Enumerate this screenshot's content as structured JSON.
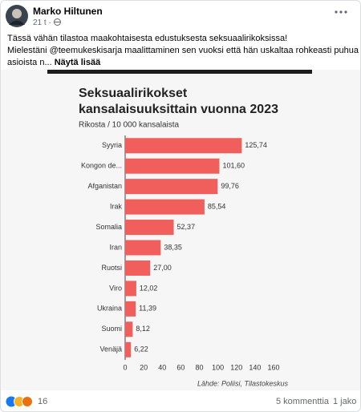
{
  "post": {
    "author": "Marko Hiltunen",
    "time": "21 t",
    "body_lines": [
      "Tässä vähän tilastoa maakohtaisesta edustuksesta seksuaalirikoksissa!",
      "Mielestäni @teemukeskisarja maalittaminen sen vuoksi että hän uskaltaa rohkeasti puhua",
      "asioista n..."
    ],
    "see_more": "Näytä lisää",
    "reaction_count": "16",
    "comments": "5 kommenttia",
    "shares": "1 jako"
  },
  "chart_data": {
    "type": "bar",
    "orientation": "horizontal",
    "title": [
      "Seksuaalirikokset",
      "kansalaisuuksittain vuonna 2023"
    ],
    "subtitle": "Rikosta / 10 000 kansalaista",
    "source": "Lähde: Poliisi, Tilastokeskus",
    "categories": [
      "Syyria",
      "Kongon de...",
      "Afganistan",
      "Irak",
      "Somalia",
      "Iran",
      "Ruotsi",
      "Viro",
      "Ukraina",
      "Suomi",
      "Venäjä"
    ],
    "values": [
      125.74,
      101.6,
      99.76,
      85.54,
      52.37,
      38.35,
      27.0,
      12.02,
      11.39,
      8.12,
      6.22
    ],
    "value_labels": [
      "125,74",
      "101,60",
      "99,76",
      "85,54",
      "52,37",
      "38,35",
      "27,00",
      "12,02",
      "11,39",
      "8,12",
      "6,22"
    ],
    "color": "#f15f5c",
    "xlim": [
      0,
      160
    ],
    "xticks": [
      0,
      20,
      40,
      60,
      80,
      100,
      120,
      140,
      160
    ],
    "grid": false
  }
}
